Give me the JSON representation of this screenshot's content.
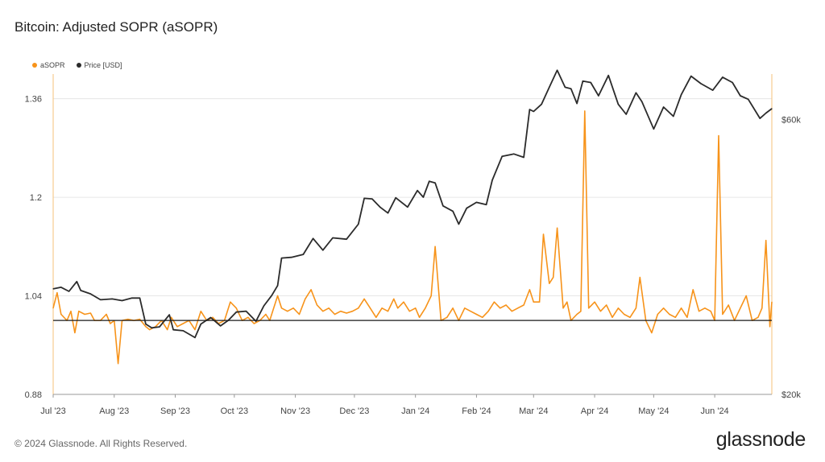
{
  "title": "Bitcoin: Adjusted SOPR (aSOPR)",
  "legend": {
    "asopr_label": "aSOPR",
    "price_label": "Price [USD]"
  },
  "colors": {
    "asopr": "#f7931a",
    "price": "#2b2b2b",
    "baseline": "#1a1a1a",
    "grid": "#e6e6e6",
    "axis": "#999999"
  },
  "footer": "© 2024 Glassnode. All Rights Reserved.",
  "brand": "glassnode",
  "chart_data": {
    "type": "line",
    "title": "Bitcoin: Adjusted SOPR (aSOPR)",
    "xlabel": "",
    "ylabel": "",
    "x_tick_labels": [
      "Jul '23",
      "Aug '23",
      "Sep '23",
      "Oct '23",
      "Nov '23",
      "Dec '23",
      "Jan '24",
      "Feb '24",
      "Mar '24",
      "Apr '24",
      "May '24",
      "Jun '24"
    ],
    "x_range": [
      "2023-07-01",
      "2024-06-30"
    ],
    "y_left": {
      "label": "aSOPR",
      "ticks": [
        "0.88",
        "1.04",
        "1.2",
        "1.36"
      ],
      "ylim": [
        0.88,
        1.4
      ]
    },
    "y_right": {
      "label": "Price [USD]",
      "scale": "log",
      "ticks": [
        "$20k",
        "$60k"
      ],
      "ylim": [
        20000,
        72000
      ]
    },
    "baseline": 1.0,
    "grid": true,
    "legend_position": "top-left",
    "series": [
      {
        "name": "aSOPR",
        "axis": "left",
        "points": [
          [
            "2023-07-01",
            1.02
          ],
          [
            "2023-07-03",
            1.045
          ],
          [
            "2023-07-05",
            1.01
          ],
          [
            "2023-07-08",
            1.0
          ],
          [
            "2023-07-10",
            1.015
          ],
          [
            "2023-07-12",
            0.98
          ],
          [
            "2023-07-14",
            1.015
          ],
          [
            "2023-07-17",
            1.01
          ],
          [
            "2023-07-20",
            1.012
          ],
          [
            "2023-07-22",
            1.0
          ],
          [
            "2023-07-25",
            1.0
          ],
          [
            "2023-07-28",
            1.01
          ],
          [
            "2023-07-30",
            0.995
          ],
          [
            "2023-08-01",
            1.0
          ],
          [
            "2023-08-03",
            0.93
          ],
          [
            "2023-08-05",
            1.0
          ],
          [
            "2023-08-08",
            1.002
          ],
          [
            "2023-08-11",
            1.0
          ],
          [
            "2023-08-14",
            1.002
          ],
          [
            "2023-08-17",
            0.99
          ],
          [
            "2023-08-19",
            0.985
          ],
          [
            "2023-08-22",
            0.99
          ],
          [
            "2023-08-25",
            1.0
          ],
          [
            "2023-08-28",
            0.985
          ],
          [
            "2023-08-30",
            1.005
          ],
          [
            "2023-09-02",
            0.99
          ],
          [
            "2023-09-05",
            0.995
          ],
          [
            "2023-09-08",
            1.0
          ],
          [
            "2023-09-11",
            0.985
          ],
          [
            "2023-09-14",
            1.015
          ],
          [
            "2023-09-17",
            1.0
          ],
          [
            "2023-09-20",
            1.005
          ],
          [
            "2023-09-23",
            0.995
          ],
          [
            "2023-09-26",
            1.0
          ],
          [
            "2023-09-29",
            1.03
          ],
          [
            "2023-10-02",
            1.02
          ],
          [
            "2023-10-05",
            1.0
          ],
          [
            "2023-10-08",
            1.005
          ],
          [
            "2023-10-11",
            0.995
          ],
          [
            "2023-10-14",
            1.0
          ],
          [
            "2023-10-17",
            1.01
          ],
          [
            "2023-10-19",
            1.0
          ],
          [
            "2023-10-21",
            1.02
          ],
          [
            "2023-10-23",
            1.04
          ],
          [
            "2023-10-25",
            1.02
          ],
          [
            "2023-10-28",
            1.015
          ],
          [
            "2023-10-31",
            1.02
          ],
          [
            "2023-11-03",
            1.01
          ],
          [
            "2023-11-06",
            1.035
          ],
          [
            "2023-11-09",
            1.05
          ],
          [
            "2023-11-12",
            1.025
          ],
          [
            "2023-11-15",
            1.015
          ],
          [
            "2023-11-18",
            1.02
          ],
          [
            "2023-11-21",
            1.01
          ],
          [
            "2023-11-24",
            1.015
          ],
          [
            "2023-11-27",
            1.012
          ],
          [
            "2023-11-30",
            1.015
          ],
          [
            "2023-12-03",
            1.02
          ],
          [
            "2023-12-06",
            1.035
          ],
          [
            "2023-12-09",
            1.02
          ],
          [
            "2023-12-12",
            1.005
          ],
          [
            "2023-12-15",
            1.02
          ],
          [
            "2023-12-18",
            1.015
          ],
          [
            "2023-12-21",
            1.035
          ],
          [
            "2023-12-23",
            1.02
          ],
          [
            "2023-12-26",
            1.03
          ],
          [
            "2023-12-29",
            1.015
          ],
          [
            "2024-01-01",
            1.02
          ],
          [
            "2024-01-03",
            1.005
          ],
          [
            "2024-01-06",
            1.02
          ],
          [
            "2024-01-09",
            1.04
          ],
          [
            "2024-01-11",
            1.12
          ],
          [
            "2024-01-14",
            1.0
          ],
          [
            "2024-01-17",
            1.005
          ],
          [
            "2024-01-20",
            1.02
          ],
          [
            "2024-01-23",
            1.0
          ],
          [
            "2024-01-26",
            1.02
          ],
          [
            "2024-01-29",
            1.015
          ],
          [
            "2024-02-01",
            1.01
          ],
          [
            "2024-02-04",
            1.005
          ],
          [
            "2024-02-07",
            1.015
          ],
          [
            "2024-02-10",
            1.03
          ],
          [
            "2024-02-13",
            1.02
          ],
          [
            "2024-02-16",
            1.025
          ],
          [
            "2024-02-19",
            1.015
          ],
          [
            "2024-02-22",
            1.02
          ],
          [
            "2024-02-25",
            1.025
          ],
          [
            "2024-02-28",
            1.05
          ],
          [
            "2024-03-01",
            1.03
          ],
          [
            "2024-03-04",
            1.03
          ],
          [
            "2024-03-06",
            1.14
          ],
          [
            "2024-03-09",
            1.06
          ],
          [
            "2024-03-11",
            1.07
          ],
          [
            "2024-03-13",
            1.15
          ],
          [
            "2024-03-16",
            1.02
          ],
          [
            "2024-03-18",
            1.03
          ],
          [
            "2024-03-20",
            1.0
          ],
          [
            "2024-03-23",
            1.01
          ],
          [
            "2024-03-25",
            1.015
          ],
          [
            "2024-03-27",
            1.34
          ],
          [
            "2024-03-29",
            1.02
          ],
          [
            "2024-04-01",
            1.03
          ],
          [
            "2024-04-04",
            1.015
          ],
          [
            "2024-04-07",
            1.025
          ],
          [
            "2024-04-10",
            1.005
          ],
          [
            "2024-04-13",
            1.02
          ],
          [
            "2024-04-16",
            1.01
          ],
          [
            "2024-04-19",
            1.005
          ],
          [
            "2024-04-22",
            1.02
          ],
          [
            "2024-04-24",
            1.07
          ],
          [
            "2024-04-27",
            1.0
          ],
          [
            "2024-04-30",
            0.98
          ],
          [
            "2024-05-03",
            1.01
          ],
          [
            "2024-05-06",
            1.02
          ],
          [
            "2024-05-09",
            1.01
          ],
          [
            "2024-05-12",
            1.005
          ],
          [
            "2024-05-15",
            1.02
          ],
          [
            "2024-05-18",
            1.005
          ],
          [
            "2024-05-21",
            1.05
          ],
          [
            "2024-05-24",
            1.015
          ],
          [
            "2024-05-27",
            1.02
          ],
          [
            "2024-05-30",
            1.015
          ],
          [
            "2024-06-01",
            1.0
          ],
          [
            "2024-06-03",
            1.3
          ],
          [
            "2024-06-05",
            1.01
          ],
          [
            "2024-06-08",
            1.025
          ],
          [
            "2024-06-11",
            1.0
          ],
          [
            "2024-06-14",
            1.02
          ],
          [
            "2024-06-17",
            1.04
          ],
          [
            "2024-06-20",
            1.0
          ],
          [
            "2024-06-23",
            1.005
          ],
          [
            "2024-06-25",
            1.02
          ],
          [
            "2024-06-27",
            1.13
          ],
          [
            "2024-06-29",
            0.99
          ],
          [
            "2024-06-30",
            1.03
          ]
        ]
      },
      {
        "name": "Price [USD]",
        "axis": "right",
        "points": [
          [
            "2023-07-01",
            30500
          ],
          [
            "2023-07-05",
            30700
          ],
          [
            "2023-07-09",
            30200
          ],
          [
            "2023-07-13",
            31400
          ],
          [
            "2023-07-15",
            30300
          ],
          [
            "2023-07-20",
            29900
          ],
          [
            "2023-07-25",
            29200
          ],
          [
            "2023-07-31",
            29300
          ],
          [
            "2023-08-05",
            29100
          ],
          [
            "2023-08-10",
            29400
          ],
          [
            "2023-08-14",
            29400
          ],
          [
            "2023-08-17",
            26500
          ],
          [
            "2023-08-20",
            26100
          ],
          [
            "2023-08-24",
            26200
          ],
          [
            "2023-08-29",
            27500
          ],
          [
            "2023-08-31",
            25900
          ],
          [
            "2023-09-05",
            25800
          ],
          [
            "2023-09-11",
            25100
          ],
          [
            "2023-09-14",
            26500
          ],
          [
            "2023-09-19",
            27200
          ],
          [
            "2023-09-24",
            26300
          ],
          [
            "2023-09-28",
            26900
          ],
          [
            "2023-10-02",
            27800
          ],
          [
            "2023-10-07",
            27900
          ],
          [
            "2023-10-12",
            26800
          ],
          [
            "2023-10-16",
            28500
          ],
          [
            "2023-10-20",
            29700
          ],
          [
            "2023-10-23",
            30900
          ],
          [
            "2023-10-25",
            34500
          ],
          [
            "2023-10-30",
            34600
          ],
          [
            "2023-11-05",
            35000
          ],
          [
            "2023-11-10",
            37300
          ],
          [
            "2023-11-15",
            35600
          ],
          [
            "2023-11-20",
            37400
          ],
          [
            "2023-11-27",
            37200
          ],
          [
            "2023-12-03",
            39500
          ],
          [
            "2023-12-06",
            43800
          ],
          [
            "2023-12-10",
            43700
          ],
          [
            "2023-12-14",
            42300
          ],
          [
            "2023-12-18",
            41300
          ],
          [
            "2023-12-22",
            43900
          ],
          [
            "2023-12-28",
            42300
          ],
          [
            "2024-01-02",
            45200
          ],
          [
            "2024-01-05",
            44000
          ],
          [
            "2024-01-08",
            46900
          ],
          [
            "2024-01-11",
            46600
          ],
          [
            "2024-01-15",
            42500
          ],
          [
            "2024-01-20",
            41600
          ],
          [
            "2024-01-23",
            39500
          ],
          [
            "2024-01-27",
            42100
          ],
          [
            "2024-02-01",
            43100
          ],
          [
            "2024-02-06",
            42700
          ],
          [
            "2024-02-09",
            47100
          ],
          [
            "2024-02-14",
            51800
          ],
          [
            "2024-02-20",
            52300
          ],
          [
            "2024-02-25",
            51600
          ],
          [
            "2024-02-28",
            62500
          ],
          [
            "2024-03-01",
            62000
          ],
          [
            "2024-03-05",
            63800
          ],
          [
            "2024-03-09",
            68300
          ],
          [
            "2024-03-13",
            73100
          ],
          [
            "2024-03-17",
            68300
          ],
          [
            "2024-03-20",
            67900
          ],
          [
            "2024-03-23",
            64000
          ],
          [
            "2024-03-26",
            70000
          ],
          [
            "2024-03-30",
            69600
          ],
          [
            "2024-04-03",
            66000
          ],
          [
            "2024-04-08",
            71600
          ],
          [
            "2024-04-13",
            63800
          ],
          [
            "2024-04-17",
            61300
          ],
          [
            "2024-04-22",
            66800
          ],
          [
            "2024-04-25",
            64500
          ],
          [
            "2024-05-01",
            57800
          ],
          [
            "2024-05-06",
            63100
          ],
          [
            "2024-05-11",
            60800
          ],
          [
            "2024-05-15",
            66300
          ],
          [
            "2024-05-20",
            71400
          ],
          [
            "2024-05-25",
            69300
          ],
          [
            "2024-05-31",
            67500
          ],
          [
            "2024-06-05",
            71100
          ],
          [
            "2024-06-10",
            69600
          ],
          [
            "2024-06-14",
            66000
          ],
          [
            "2024-06-18",
            65100
          ],
          [
            "2024-06-24",
            60300
          ],
          [
            "2024-06-27",
            61600
          ],
          [
            "2024-06-30",
            62700
          ]
        ]
      }
    ]
  }
}
